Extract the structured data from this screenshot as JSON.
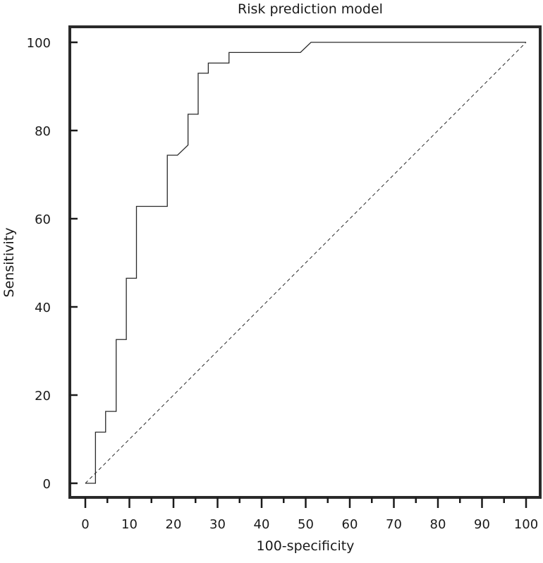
{
  "chart_data": {
    "type": "line",
    "title": "Risk prediction model",
    "xlabel": "100-specificity",
    "ylabel": "Sensitivity",
    "xlim": [
      0,
      100
    ],
    "ylim": [
      0,
      100
    ],
    "x_ticks": [
      0,
      10,
      20,
      30,
      40,
      50,
      60,
      70,
      80,
      90,
      100
    ],
    "y_ticks": [
      0,
      20,
      40,
      60,
      80,
      100
    ],
    "x_tick_labels": [
      "0",
      "10",
      "20",
      "30",
      "40",
      "50",
      "60",
      "70",
      "80",
      "90",
      "100"
    ],
    "y_tick_labels": [
      "0",
      "20",
      "40",
      "60",
      "80",
      "100"
    ],
    "grid": false,
    "series": [
      {
        "style": "solid",
        "x": [
          0,
          2.3,
          2.3,
          4.6,
          4.6,
          7.0,
          7.0,
          9.3,
          9.3,
          11.6,
          11.6,
          18.6,
          18.6,
          20.9,
          23.3,
          23.3,
          25.6,
          25.6,
          27.9,
          27.9,
          32.6,
          32.6,
          48.8,
          51.2,
          100
        ],
        "y": [
          0,
          0,
          11.6,
          11.6,
          16.3,
          16.3,
          32.6,
          32.6,
          46.5,
          46.5,
          62.8,
          62.8,
          74.4,
          74.4,
          76.7,
          83.7,
          83.7,
          93.0,
          93.0,
          95.3,
          95.3,
          97.7,
          97.7,
          100,
          100
        ]
      },
      {
        "style": "dashed",
        "x": [
          0,
          100
        ],
        "y": [
          0,
          100
        ]
      }
    ],
    "colors": {
      "line": "#2a2a2a",
      "axis": "#1a1a1a",
      "frame": "#2a2a2a"
    }
  }
}
